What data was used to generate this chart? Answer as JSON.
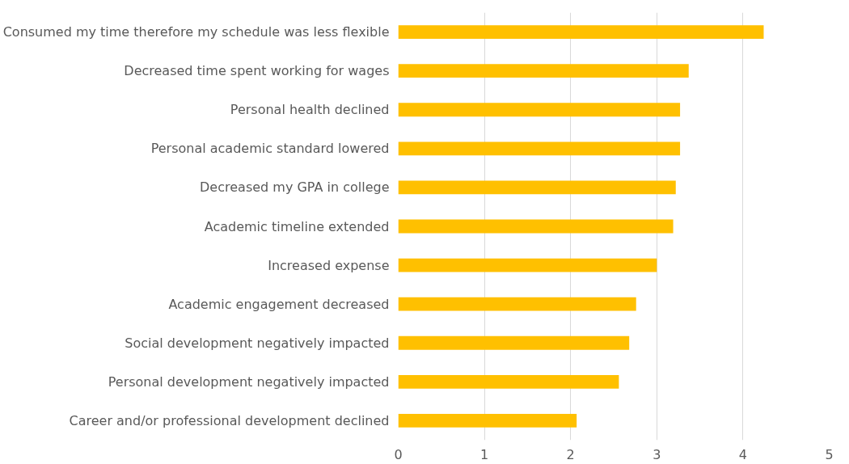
{
  "chart_data": {
    "type": "bar",
    "orientation": "horizontal",
    "categories": [
      "Consumed my time therefore my schedule was less flexible",
      "Decreased time spent working for wages",
      "Personal health declined",
      "Personal academic standard lowered",
      "Decreased my GPA in college",
      "Academic timeline extended",
      "Increased expense",
      "Academic engagement decreased",
      "Social development negatively impacted",
      "Personal development negatively impacted",
      "Career and/or professional development declined"
    ],
    "values": [
      4.24,
      3.37,
      3.27,
      3.27,
      3.22,
      3.19,
      3.0,
      2.76,
      2.68,
      2.56,
      2.07
    ],
    "color": "#ffc000",
    "xlim": [
      0,
      5
    ],
    "xticks": [
      0,
      1,
      2,
      3,
      4,
      5
    ],
    "grid": "x"
  }
}
